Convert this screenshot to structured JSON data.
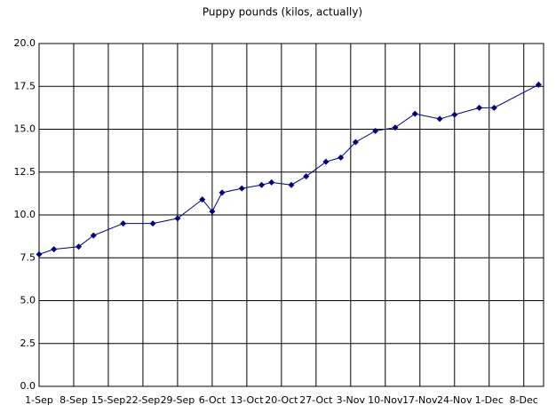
{
  "chart_data": {
    "type": "line",
    "title": "Puppy pounds (kilos, actually)",
    "x": [
      "09-01",
      "09-04",
      "09-09",
      "09-12",
      "09-18",
      "09-24",
      "09-29",
      "10-04",
      "10-06",
      "10-08",
      "10-12",
      "10-16",
      "10-18",
      "10-22",
      "10-25",
      "10-29",
      "11-01",
      "11-04",
      "11-08",
      "11-12",
      "11-16",
      "11-21",
      "11-24",
      "11-29",
      "12-02",
      "12-11"
    ],
    "series": [
      {
        "color": "#000080",
        "values": [
          7.7,
          8.0,
          8.15,
          8.8,
          9.5,
          9.5,
          9.8,
          10.9,
          10.2,
          11.3,
          11.55,
          11.75,
          11.9,
          11.75,
          12.25,
          13.1,
          13.35,
          14.25,
          14.9,
          15.1,
          15.9,
          15.6,
          15.85,
          16.25,
          16.25,
          17.6
        ]
      }
    ],
    "xlim": [
      "09-01",
      "12-12"
    ],
    "xticks": [
      {
        "value": "09-01",
        "label": "1-Sep"
      },
      {
        "value": "09-08",
        "label": "8-Sep"
      },
      {
        "value": "09-15",
        "label": "15-Sep"
      },
      {
        "value": "09-22",
        "label": "22-Sep"
      },
      {
        "value": "09-29",
        "label": "29-Sep"
      },
      {
        "value": "10-06",
        "label": "6-Oct"
      },
      {
        "value": "10-13",
        "label": "13-Oct"
      },
      {
        "value": "10-20",
        "label": "20-Oct"
      },
      {
        "value": "10-27",
        "label": "27-Oct"
      },
      {
        "value": "11-03",
        "label": "3-Nov"
      },
      {
        "value": "11-10",
        "label": "10-Nov"
      },
      {
        "value": "11-17",
        "label": "17-Nov"
      },
      {
        "value": "11-24",
        "label": "24-Nov"
      },
      {
        "value": "12-01",
        "label": "1-Dec"
      },
      {
        "value": "12-08",
        "label": "8-Dec"
      }
    ],
    "ylim": [
      0,
      20
    ],
    "yticks": [
      {
        "value": 0,
        "label": "0.0"
      },
      2.5,
      {
        "value": 5,
        "label": "5.0"
      },
      7.5,
      {
        "value": 10,
        "label": "10.0"
      },
      12.5,
      {
        "value": 15,
        "label": "15.0"
      },
      17.5,
      {
        "value": 20,
        "label": "20.0"
      }
    ],
    "grid": true
  }
}
